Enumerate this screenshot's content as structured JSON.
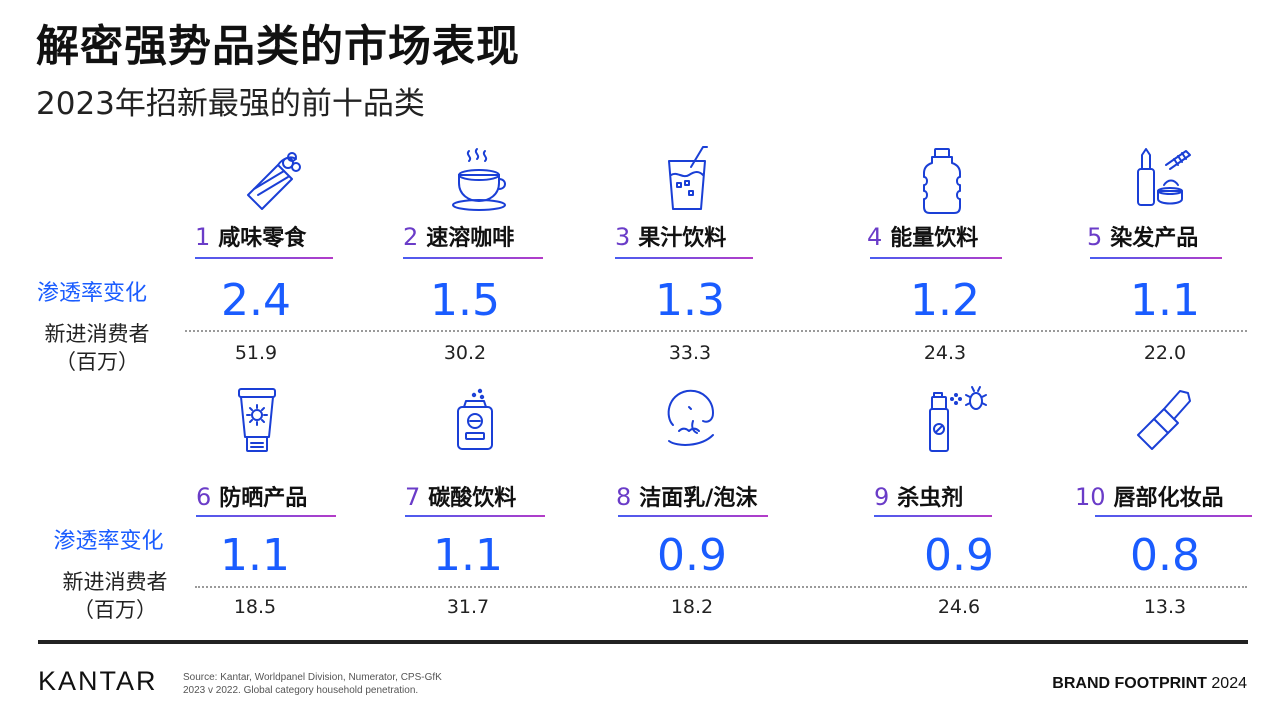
{
  "title": "解密强势品类的市场表现",
  "subtitle": "2023年招新最强的前十品类",
  "labels": {
    "penetration_change": "渗透率变化",
    "new_consumers_line1": "新进消费者",
    "new_consumers_line2": "（百万）"
  },
  "chart_data": {
    "type": "table",
    "columns": [
      "rank",
      "category",
      "penetration_change",
      "new_consumers_millions"
    ],
    "rows": [
      {
        "rank": "1",
        "category": "咸味零食",
        "penetration_change": "2.4",
        "new_consumers": "51.9",
        "icon": "burrito-icon"
      },
      {
        "rank": "2",
        "category": "速溶咖啡",
        "penetration_change": "1.5",
        "new_consumers": "30.2",
        "icon": "coffee-cup-icon"
      },
      {
        "rank": "3",
        "category": "果汁饮料",
        "penetration_change": "1.3",
        "new_consumers": "33.3",
        "icon": "juice-glass-icon"
      },
      {
        "rank": "4",
        "category": "能量饮料",
        "penetration_change": "1.2",
        "new_consumers": "24.3",
        "icon": "bottle-icon"
      },
      {
        "rank": "5",
        "category": "染发产品",
        "penetration_change": "1.1",
        "new_consumers": "22.0",
        "icon": "hair-dye-icon"
      },
      {
        "rank": "6",
        "category": "防晒产品",
        "penetration_change": "1.1",
        "new_consumers": "18.5",
        "icon": "sunscreen-tube-icon"
      },
      {
        "rank": "7",
        "category": "碳酸饮料",
        "penetration_change": "1.1",
        "new_consumers": "31.7",
        "icon": "soda-can-icon"
      },
      {
        "rank": "8",
        "category": "洁面乳/泡沫",
        "penetration_change": "0.9",
        "new_consumers": "18.2",
        "icon": "face-wash-icon"
      },
      {
        "rank": "9",
        "category": "杀虫剂",
        "penetration_change": "0.9",
        "new_consumers": "24.6",
        "icon": "insect-spray-icon"
      },
      {
        "rank": "10",
        "category": "唇部化妆品",
        "penetration_change": "0.8",
        "new_consumers": "13.3",
        "icon": "lipstick-icon"
      }
    ]
  },
  "footer": {
    "logo": "KANTAR",
    "source_line1": "Source: Kantar, Worldpanel Division, Numerator, CPS-GfK",
    "source_line2": "2023 v 2022. Global category household penetration.",
    "brand_bold": "BRAND FOOTPRINT",
    "brand_year": "2024"
  },
  "colors": {
    "accent_blue": "#1a5cff",
    "rank_purple": "#6a3cc8",
    "underline_start": "#4a5cf0",
    "underline_end": "#b43cc8"
  }
}
